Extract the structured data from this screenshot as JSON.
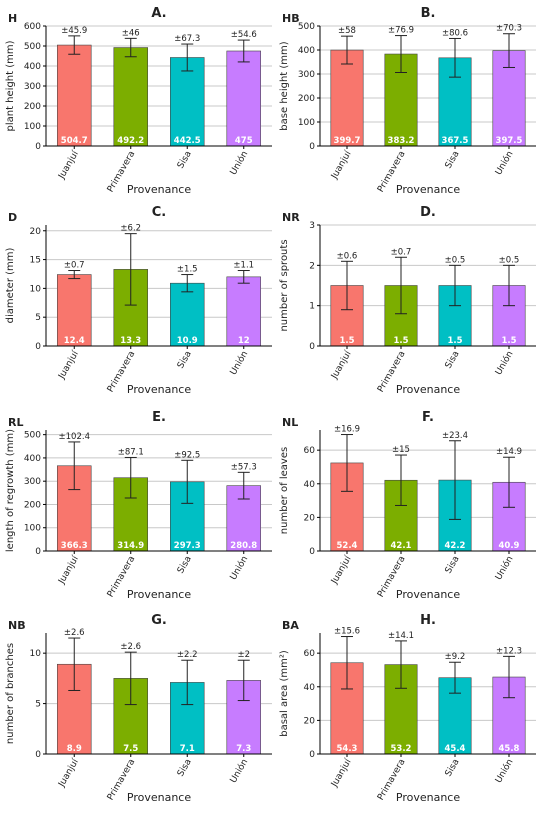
{
  "figure": {
    "colors": {
      "Juanjuí": "#f8766d",
      "Primavera": "#7cae00",
      "Sisa": "#00bfc4",
      "Unión": "#c77cff",
      "grid": "#c8c8c8",
      "axis": "#000000"
    }
  },
  "chart_data": [
    {
      "type": "bar",
      "panel_letter": "A.",
      "code": "H",
      "ylabel": "plant height (mm)",
      "xlabel": "Provenance",
      "categories": [
        "Juanjuí",
        "Primavera",
        "Sisa",
        "Unión"
      ],
      "values": [
        504.7,
        492.2,
        442.5,
        475
      ],
      "value_labels": [
        "504.7",
        "492.2",
        "442.5",
        "475"
      ],
      "errors": [
        45.9,
        46,
        67.3,
        54.6
      ],
      "error_labels": [
        "±45.9",
        "±46",
        "±67.3",
        "±54.6"
      ],
      "ylim": [
        0,
        600
      ],
      "yticks": [
        0,
        100,
        200,
        300,
        400,
        500,
        600
      ],
      "grid": true
    },
    {
      "type": "bar",
      "panel_letter": "B.",
      "code": "HB",
      "ylabel": "base height (mm)",
      "xlabel": "Provenance",
      "categories": [
        "Juanjuí",
        "Primavera",
        "Sisa",
        "Unión"
      ],
      "values": [
        399.7,
        383.2,
        367.5,
        397.5
      ],
      "value_labels": [
        "399.7",
        "383.2",
        "367.5",
        "397.5"
      ],
      "errors": [
        58,
        76.9,
        80.6,
        70.3
      ],
      "error_labels": [
        "±58",
        "±76.9",
        "±80.6",
        "±70.3"
      ],
      "ylim": [
        0,
        500
      ],
      "yticks": [
        0,
        100,
        200,
        300,
        400,
        500
      ],
      "grid": true
    },
    {
      "type": "bar",
      "panel_letter": "C.",
      "code": "D",
      "ylabel": "diameter (mm)",
      "xlabel": "Provenance",
      "categories": [
        "Juanjuí",
        "Primavera",
        "Sisa",
        "Unión"
      ],
      "values": [
        12.4,
        13.3,
        10.9,
        12
      ],
      "value_labels": [
        "12.4",
        "13.3",
        "10.9",
        "12"
      ],
      "errors": [
        0.7,
        6.2,
        1.5,
        1.1
      ],
      "error_labels": [
        "±0.7",
        "±6.2",
        "±1.5",
        "±1.1"
      ],
      "ylim": [
        0,
        21
      ],
      "yticks": [
        0,
        5,
        10,
        15,
        20
      ],
      "grid": true
    },
    {
      "type": "bar",
      "panel_letter": "D.",
      "code": "NR",
      "ylabel": "number of sprouts",
      "xlabel": "Provenance",
      "categories": [
        "Juanjuí",
        "Primavera",
        "Sisa",
        "Unión"
      ],
      "values": [
        1.5,
        1.5,
        1.5,
        1.5
      ],
      "value_labels": [
        "1.5",
        "1.5",
        "1.5",
        "1.5"
      ],
      "errors": [
        0.6,
        0.7,
        0.5,
        0.5
      ],
      "error_labels": [
        "±0.6",
        "±0.7",
        "±0.5",
        "±0.5"
      ],
      "ylim": [
        0,
        3
      ],
      "yticks": [
        0,
        1,
        2,
        3
      ],
      "grid": true
    },
    {
      "type": "bar",
      "panel_letter": "E.",
      "code": "RL",
      "ylabel": "length of regrowth (mm)",
      "xlabel": "Provenance",
      "categories": [
        "Juanjuí",
        "Primavera",
        "Sisa",
        "Unión"
      ],
      "values": [
        366.3,
        314.9,
        297.3,
        280.8
      ],
      "value_labels": [
        "366.3",
        "314.9",
        "297.3",
        "280.8"
      ],
      "errors": [
        102.4,
        87.1,
        92.5,
        57.3
      ],
      "error_labels": [
        "±102.4",
        "±87.1",
        "±92.5",
        "±57.3"
      ],
      "ylim": [
        0,
        520
      ],
      "yticks": [
        0,
        100,
        200,
        300,
        400,
        500
      ],
      "grid": true
    },
    {
      "type": "bar",
      "panel_letter": "F.",
      "code": "NL",
      "ylabel": "number of leaves",
      "xlabel": "Provenance",
      "categories": [
        "Juanjuí",
        "Primavera",
        "Sisa",
        "Unión"
      ],
      "values": [
        52.4,
        42.1,
        42.2,
        40.9
      ],
      "value_labels": [
        "52.4",
        "42.1",
        "42.2",
        "40.9"
      ],
      "errors": [
        16.9,
        15,
        23.4,
        14.9
      ],
      "error_labels": [
        "±16.9",
        "±15",
        "±23.4",
        "±14.9"
      ],
      "ylim": [
        0,
        72
      ],
      "yticks": [
        0,
        20,
        40,
        60
      ],
      "grid": true
    },
    {
      "type": "bar",
      "panel_letter": "G.",
      "code": "NB",
      "ylabel": "number of branches",
      "xlabel": "Provenance",
      "categories": [
        "Juanjuí",
        "Primavera",
        "Sisa",
        "Unión"
      ],
      "values": [
        8.9,
        7.5,
        7.1,
        7.3
      ],
      "value_labels": [
        "8.9",
        "7.5",
        "7.1",
        "7.3"
      ],
      "errors": [
        2.6,
        2.6,
        2.2,
        2
      ],
      "error_labels": [
        "±2.6",
        "±2.6",
        "±2.2",
        "±2"
      ],
      "ylim": [
        0,
        12
      ],
      "yticks": [
        0,
        5,
        10
      ],
      "grid": true
    },
    {
      "type": "bar",
      "panel_letter": "H.",
      "code": "BA",
      "ylabel": "basal area (mm²)",
      "xlabel": "Provenance",
      "categories": [
        "Juanjuí",
        "Primavera",
        "Sisa",
        "Unión"
      ],
      "values": [
        54.3,
        53.2,
        45.4,
        45.8
      ],
      "value_labels": [
        "54.3",
        "53.2",
        "45.4",
        "45.8"
      ],
      "errors": [
        15.6,
        14.1,
        9.2,
        12.3
      ],
      "error_labels": [
        "±15.6",
        "±14.1",
        "±9.2",
        "±12.3"
      ],
      "ylim": [
        0,
        72
      ],
      "yticks": [
        0,
        20,
        40,
        60
      ],
      "grid": true
    }
  ]
}
